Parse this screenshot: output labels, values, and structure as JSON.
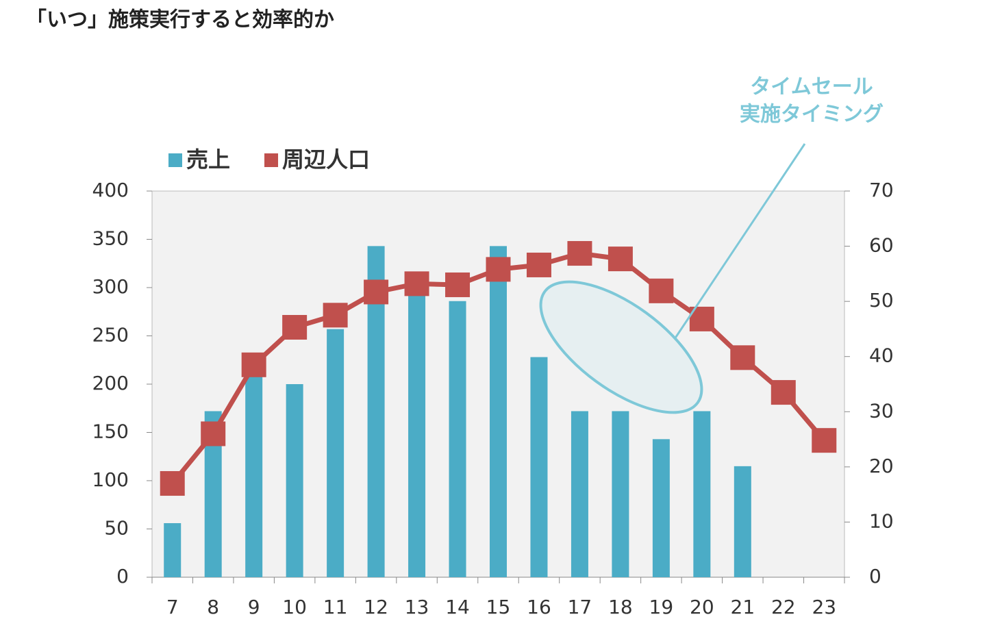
{
  "chart_data": {
    "type": "bar-line",
    "title": "「いつ」施策実行すると効率的か",
    "annotation": [
      "タイムセール",
      "実施タイミング"
    ],
    "categories": [
      "7",
      "8",
      "9",
      "10",
      "11",
      "12",
      "13",
      "14",
      "15",
      "16",
      "17",
      "18",
      "19",
      "20",
      "21",
      "22",
      "23"
    ],
    "series": [
      {
        "name": "売上",
        "color": "#4bacc6",
        "type": "bar",
        "values": [
          56,
          172,
          212,
          200,
          257,
          343,
          293,
          286,
          343,
          228,
          172,
          172,
          143,
          172,
          115,
          null,
          null
        ]
      },
      {
        "name": "周辺人口",
        "color": "#c0504d",
        "type": "line",
        "axis": "y2",
        "values": [
          17,
          26,
          38.5,
          45.3,
          47.5,
          51.7,
          53.2,
          53,
          55.8,
          56.6,
          58.7,
          57.7,
          51.9,
          46.8,
          39.8,
          33.5,
          24.8
        ]
      }
    ],
    "ylim": [
      0,
      400
    ],
    "yticks": [
      0,
      50,
      100,
      150,
      200,
      250,
      300,
      350,
      400
    ],
    "y2lim": [
      0,
      70
    ],
    "y2ticks": [
      0,
      10,
      20,
      30,
      40,
      50,
      60,
      70
    ],
    "annotation_color": "#7ec8d8",
    "plot_background": "#f2f2f2"
  }
}
